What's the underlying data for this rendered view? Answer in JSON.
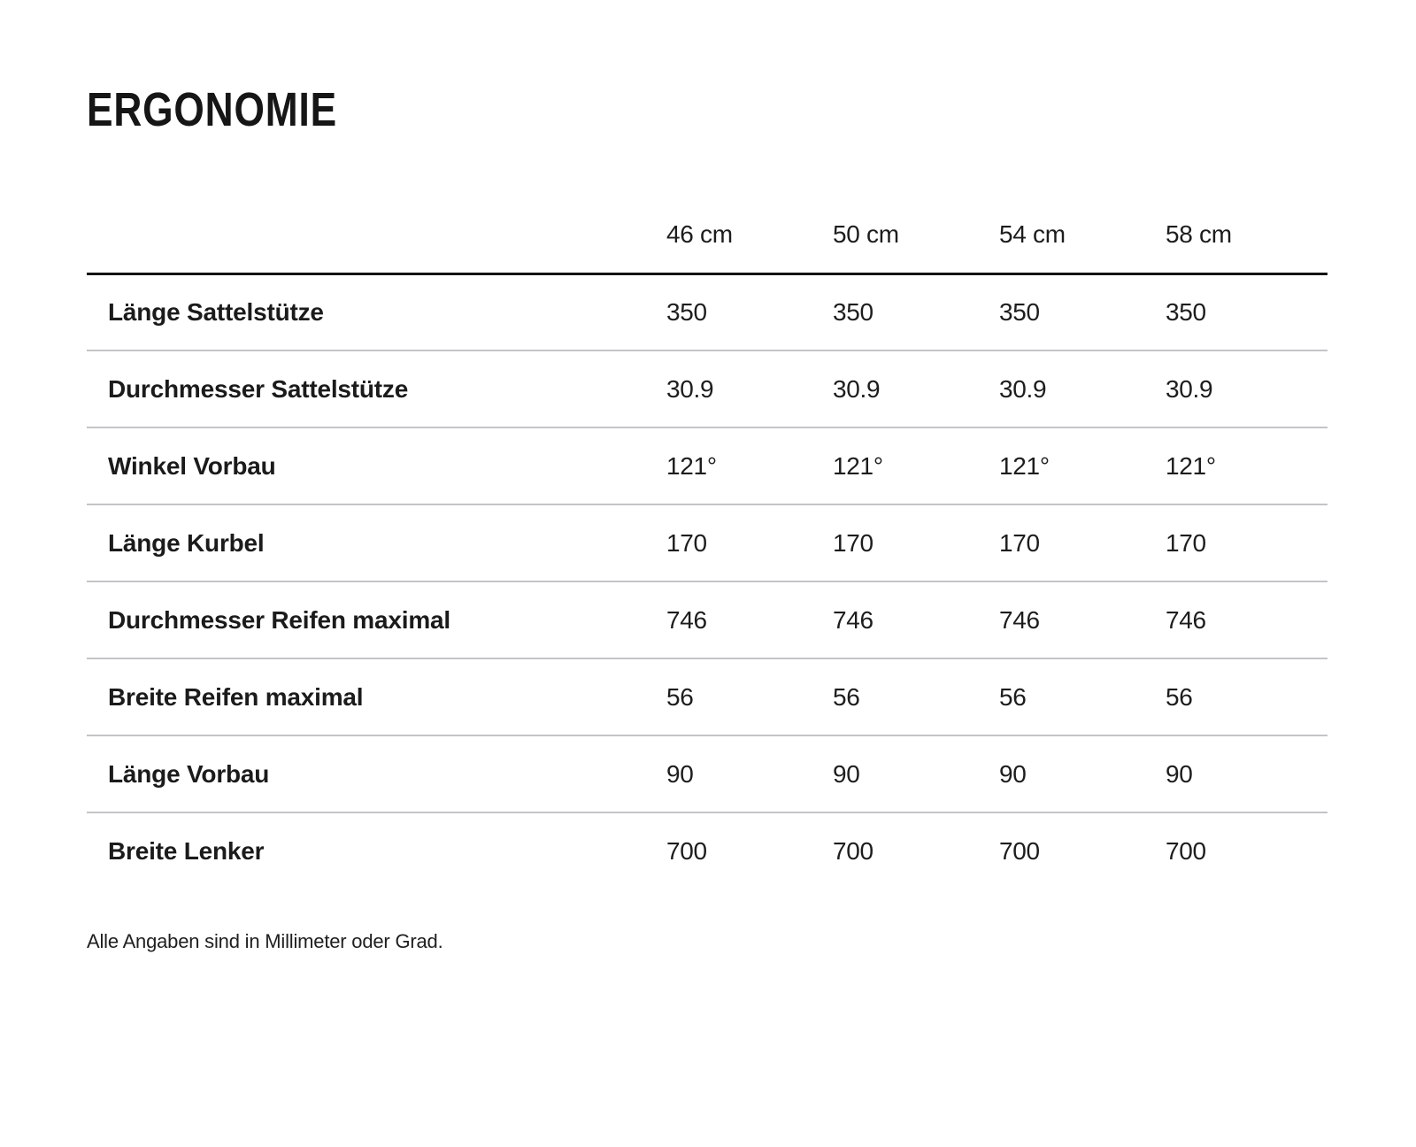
{
  "page": {
    "title": "ERGONOMIE",
    "footnote": "Alle Angaben sind in Millimeter oder Grad."
  },
  "table": {
    "columns": [
      "46 cm",
      "50 cm",
      "54 cm",
      "58 cm"
    ],
    "rows": [
      {
        "label": "Länge Sattelstütze",
        "values": [
          "350",
          "350",
          "350",
          "350"
        ]
      },
      {
        "label": "Durchmesser Sattelstütze",
        "values": [
          "30.9",
          "30.9",
          "30.9",
          "30.9"
        ]
      },
      {
        "label": "Winkel Vorbau",
        "values": [
          "121°",
          "121°",
          "121°",
          "121°"
        ]
      },
      {
        "label": "Länge Kurbel",
        "values": [
          "170",
          "170",
          "170",
          "170"
        ]
      },
      {
        "label": "Durchmesser Reifen maximal",
        "values": [
          "746",
          "746",
          "746",
          "746"
        ]
      },
      {
        "label": "Breite Reifen maximal",
        "values": [
          "56",
          "56",
          "56",
          "56"
        ]
      },
      {
        "label": "Länge Vorbau",
        "values": [
          "90",
          "90",
          "90",
          "90"
        ]
      },
      {
        "label": "Breite Lenker",
        "values": [
          "700",
          "700",
          "700",
          "700"
        ]
      }
    ],
    "colors": {
      "text": "#1d1d1d",
      "header_rule": "#131313",
      "row_divider": "#c4c4c8",
      "background": "#ffffff"
    }
  }
}
